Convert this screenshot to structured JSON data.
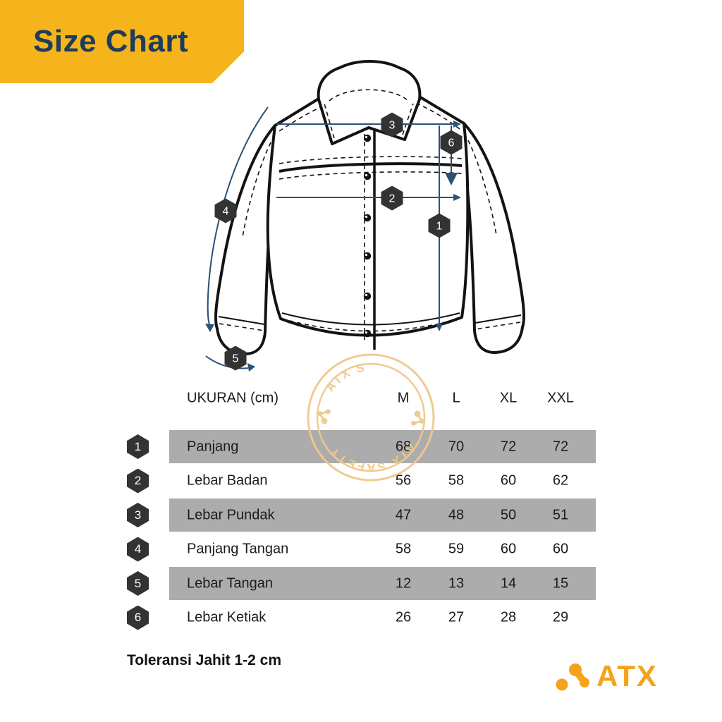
{
  "header": {
    "title": "Size Chart"
  },
  "diagram": {
    "watermark_text": "ATX SAFETY",
    "markers": [
      {
        "num": "1"
      },
      {
        "num": "2"
      },
      {
        "num": "3"
      },
      {
        "num": "4"
      },
      {
        "num": "5"
      },
      {
        "num": "6"
      }
    ]
  },
  "table": {
    "unit_header": "UKURAN (cm)",
    "size_columns": [
      "M",
      "L",
      "XL",
      "XXL"
    ],
    "rows": [
      {
        "num": "1",
        "label": "Panjang",
        "values": [
          "68",
          "70",
          "72",
          "72"
        ]
      },
      {
        "num": "2",
        "label": "Lebar Badan",
        "values": [
          "56",
          "58",
          "60",
          "62"
        ]
      },
      {
        "num": "3",
        "label": "Lebar Pundak",
        "values": [
          "47",
          "48",
          "50",
          "51"
        ]
      },
      {
        "num": "4",
        "label": "Panjang Tangan",
        "values": [
          "58",
          "59",
          "60",
          "60"
        ]
      },
      {
        "num": "5",
        "label": "Lebar Tangan",
        "values": [
          "12",
          "13",
          "14",
          "15"
        ]
      },
      {
        "num": "6",
        "label": "Lebar Ketiak",
        "values": [
          "26",
          "27",
          "28",
          "29"
        ]
      }
    ]
  },
  "footer": {
    "tolerance_note": "Toleransi Jahit 1-2 cm",
    "brand": "ATX"
  },
  "colors": {
    "banner_yellow": "#F5B41C",
    "title_navy": "#1E3C5C",
    "arrow_navy": "#2A5278",
    "hexagon_dark": "#333333",
    "row_gray": "#ACACAC",
    "watermark_tan": "#EFC98C",
    "logo_orange": "#F5A31B"
  },
  "chart_data": {
    "type": "table",
    "title": "Size Chart",
    "columns": [
      "UKURAN (cm)",
      "M",
      "L",
      "XL",
      "XXL"
    ],
    "rows": [
      [
        "Panjang",
        68,
        70,
        72,
        72
      ],
      [
        "Lebar Badan",
        56,
        58,
        60,
        62
      ],
      [
        "Lebar Pundak",
        47,
        48,
        50,
        51
      ],
      [
        "Panjang Tangan",
        58,
        59,
        60,
        60
      ],
      [
        "Lebar Tangan",
        12,
        13,
        14,
        15
      ],
      [
        "Lebar Ketiak",
        26,
        27,
        28,
        29
      ]
    ],
    "footnote": "Toleransi Jahit 1-2 cm"
  }
}
